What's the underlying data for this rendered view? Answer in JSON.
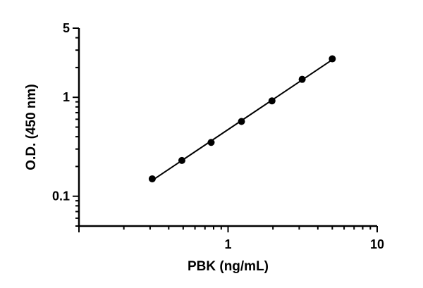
{
  "chart_data": {
    "type": "scatter",
    "title": "",
    "xlabel": "PBK (ng/mL)",
    "ylabel": "O.D. (450 nm)",
    "x_scale": "log",
    "y_scale": "log",
    "xlim": [
      0.1,
      10
    ],
    "ylim": [
      0.05,
      5
    ],
    "x_ticks": [
      1,
      10
    ],
    "x_tick_labels": [
      "1",
      "10"
    ],
    "y_ticks": [
      0.1,
      1,
      5
    ],
    "y_tick_labels": [
      "0.1",
      "1",
      "5"
    ],
    "grid": false,
    "legend": "none",
    "fit_line": true,
    "series": [
      {
        "x": [
          0.31,
          0.49,
          0.77,
          1.23,
          1.97,
          3.14,
          5.0
        ],
        "y": [
          0.15,
          0.23,
          0.35,
          0.57,
          0.92,
          1.52,
          2.45
        ]
      }
    ]
  }
}
